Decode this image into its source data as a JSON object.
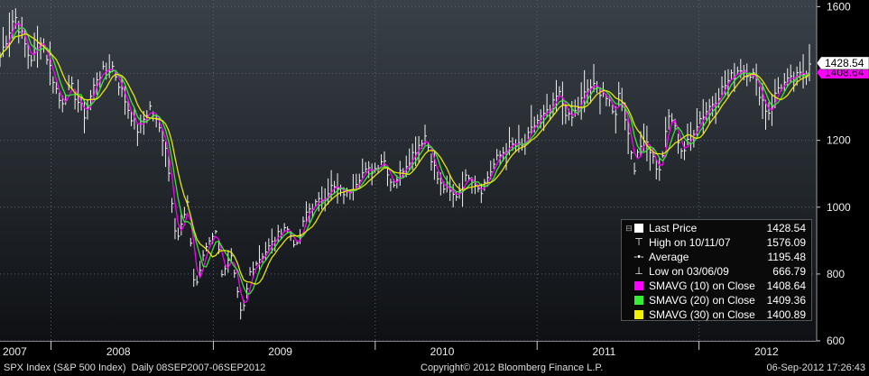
{
  "chart_data": {
    "type": "line",
    "title": "",
    "xlabel": "",
    "ylabel": "",
    "ylim": [
      600,
      1620
    ],
    "xlim": [
      "2007-09-08",
      "2012-09-06"
    ],
    "yticks": [
      600,
      800,
      1000,
      1200,
      1400,
      1600
    ],
    "year_labels": [
      {
        "label": "2007",
        "date": "2007-09-08"
      },
      {
        "label": "2008",
        "date": "2008-06-01"
      },
      {
        "label": "2009",
        "date": "2009-06-01"
      },
      {
        "label": "2010",
        "date": "2010-06-01"
      },
      {
        "label": "2011",
        "date": "2011-06-01"
      },
      {
        "label": "2012",
        "date": "2012-06-01"
      }
    ],
    "year_boundaries": [
      "2008-01-01",
      "2009-01-01",
      "2010-01-01",
      "2011-01-01",
      "2012-01-01"
    ],
    "grid": true,
    "legend_position": "bottom-right",
    "last_price_marker": {
      "value": 1428.54,
      "label": "1428.54"
    },
    "sma_marker": {
      "value": 1408.64,
      "label": "1408.64"
    },
    "price_series": {
      "name": "Last Price",
      "color": "#ffffff",
      "x": [
        "2007-09-08",
        "2007-10-11",
        "2007-11-15",
        "2007-12-10",
        "2008-01-22",
        "2008-02-15",
        "2008-03-17",
        "2008-04-15",
        "2008-05-19",
        "2008-06-27",
        "2008-07-15",
        "2008-08-11",
        "2008-09-15",
        "2008-10-10",
        "2008-11-04",
        "2008-11-20",
        "2008-12-15",
        "2009-01-06",
        "2009-01-20",
        "2009-02-10",
        "2009-03-06",
        "2009-03-26",
        "2009-04-30",
        "2009-05-29",
        "2009-06-12",
        "2009-07-08",
        "2009-07-31",
        "2009-08-31",
        "2009-09-23",
        "2009-10-30",
        "2009-11-30",
        "2009-12-31",
        "2010-01-19",
        "2010-02-08",
        "2010-03-31",
        "2010-04-23",
        "2010-05-25",
        "2010-06-30",
        "2010-07-30",
        "2010-08-27",
        "2010-09-30",
        "2010-10-29",
        "2010-11-30",
        "2010-12-31",
        "2011-01-31",
        "2011-02-18",
        "2011-03-16",
        "2011-04-29",
        "2011-05-31",
        "2011-06-24",
        "2011-07-07",
        "2011-08-08",
        "2011-08-31",
        "2011-10-03",
        "2011-10-27",
        "2011-11-25",
        "2011-12-30",
        "2012-01-31",
        "2012-02-29",
        "2012-04-02",
        "2012-05-01",
        "2012-06-04",
        "2012-06-29",
        "2012-07-31",
        "2012-08-31",
        "2012-09-06"
      ],
      "y": [
        1450,
        1576,
        1440,
        1510,
        1310,
        1360,
        1275,
        1395,
        1420,
        1280,
        1230,
        1300,
        1190,
        900,
        1005,
        750,
        880,
        935,
        805,
        850,
        667,
        815,
        870,
        920,
        945,
        880,
        990,
        1020,
        1060,
        1040,
        1100,
        1115,
        1150,
        1065,
        1170,
        1215,
        1070,
        1030,
        1100,
        1050,
        1140,
        1185,
        1180,
        1258,
        1285,
        1343,
        1256,
        1363,
        1345,
        1268,
        1353,
        1120,
        1218,
        1099,
        1285,
        1160,
        1258,
        1312,
        1366,
        1419,
        1398,
        1278,
        1362,
        1380,
        1406,
        1428.54
      ]
    },
    "moving_averages": [
      {
        "name": "SMAVG (10) on Close",
        "window": 10,
        "color": "#ff00ff"
      },
      {
        "name": "SMAVG (20) on Close",
        "window": 20,
        "color": "#33ee33"
      },
      {
        "name": "SMAVG (30) on Close",
        "window": 30,
        "color": "#f0f000"
      }
    ],
    "legend": [
      {
        "name": "Last Price",
        "value": "1428.54",
        "symbol": "box",
        "color": "#ffffff"
      },
      {
        "name": "High on 10/11/07",
        "value": "1576.09",
        "symbol": "high"
      },
      {
        "name": "Average",
        "value": "1195.48",
        "symbol": "avg"
      },
      {
        "name": "Low on 03/06/09",
        "value": "666.79",
        "symbol": "low"
      },
      {
        "name": "SMAVG (10) on Close",
        "value": "1408.64",
        "symbol": "box",
        "color": "#ff00ff"
      },
      {
        "name": "SMAVG (20) on Close",
        "value": "1409.36",
        "symbol": "box",
        "color": "#33ee33"
      },
      {
        "name": "SMAVG (30) on Close",
        "value": "1400.89",
        "symbol": "box",
        "color": "#f0f000"
      }
    ]
  },
  "footer": {
    "left": "SPX Index (S&P 500 Index)  Daily 08SEP2007-06SEP2012",
    "center": "Copyright© 2012 Bloomberg Finance L.P.",
    "right": "06-Sep-2012 17:26:43"
  }
}
